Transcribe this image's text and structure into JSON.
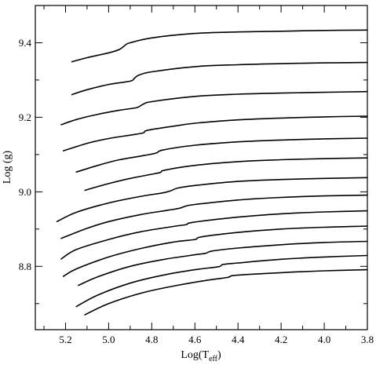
{
  "chart_data": {
    "type": "line",
    "xlabel_base": "Log(T",
    "xlabel_sub": "eff",
    "xlabel_close": ")",
    "ylabel": "Log (g)",
    "xlim": [
      5.34,
      3.8
    ],
    "ylim": [
      8.63,
      9.5
    ],
    "x_reversed": true,
    "x_ticks": [
      5.2,
      5.0,
      4.8,
      4.6,
      4.4,
      4.2,
      4.0,
      3.8
    ],
    "x_tick_labels": [
      "5.2",
      "5.0",
      "4.8",
      "4.6",
      "4.4",
      "4.2",
      "4.0",
      "3.8"
    ],
    "x_minor_ticks": [
      5.3,
      5.1,
      4.9,
      4.7,
      4.5,
      4.3,
      4.1,
      3.9
    ],
    "y_ticks": [
      8.8,
      9.0,
      9.2,
      9.4
    ],
    "y_tick_labels": [
      "8.8",
      "9.0",
      "9.2",
      "9.4"
    ],
    "y_minor_ticks": [
      8.7,
      8.9,
      9.1,
      9.3
    ],
    "grid": false,
    "legend": "none",
    "line_color": "#000000",
    "series": [
      {
        "x": [
          5.17,
          5.1,
          5.0,
          4.95,
          4.92,
          4.9,
          4.8,
          4.6,
          4.4,
          4.2,
          4.0,
          3.8
        ],
        "y": [
          9.349,
          9.36,
          9.373,
          9.382,
          9.395,
          9.4,
          9.413,
          9.425,
          9.429,
          9.431,
          9.433,
          9.434
        ]
      },
      {
        "x": [
          5.17,
          5.1,
          5.0,
          4.9,
          4.88,
          4.86,
          4.8,
          4.6,
          4.4,
          4.2,
          4.0,
          3.8
        ],
        "y": [
          9.261,
          9.274,
          9.288,
          9.297,
          9.305,
          9.313,
          9.322,
          9.336,
          9.341,
          9.344,
          9.346,
          9.347
        ]
      },
      {
        "x": [
          5.22,
          5.15,
          5.05,
          4.95,
          4.87,
          4.84,
          4.8,
          4.6,
          4.4,
          4.2,
          4.0,
          3.8
        ],
        "y": [
          9.18,
          9.194,
          9.208,
          9.219,
          9.226,
          9.235,
          9.242,
          9.256,
          9.262,
          9.265,
          9.267,
          9.269
        ]
      },
      {
        "x": [
          5.21,
          5.1,
          5.0,
          4.9,
          4.84,
          4.82,
          4.7,
          4.6,
          4.4,
          4.2,
          4.0,
          3.8
        ],
        "y": [
          9.11,
          9.13,
          9.143,
          9.152,
          9.158,
          9.165,
          9.176,
          9.184,
          9.193,
          9.198,
          9.201,
          9.203
        ]
      },
      {
        "x": [
          5.15,
          5.05,
          4.95,
          4.85,
          4.78,
          4.75,
          4.6,
          4.4,
          4.2,
          4.0,
          3.8
        ],
        "y": [
          9.053,
          9.071,
          9.086,
          9.096,
          9.104,
          9.112,
          9.125,
          9.134,
          9.139,
          9.142,
          9.144
        ]
      },
      {
        "x": [
          5.11,
          5.0,
          4.9,
          4.8,
          4.76,
          4.74,
          4.6,
          4.4,
          4.2,
          4.0,
          3.8
        ],
        "y": [
          9.004,
          9.022,
          9.036,
          9.047,
          9.052,
          9.058,
          9.071,
          9.081,
          9.086,
          9.089,
          9.091
        ]
      },
      {
        "x": [
          5.24,
          5.15,
          5.0,
          4.85,
          4.75,
          4.71,
          4.68,
          4.6,
          4.4,
          4.2,
          4.0,
          3.8
        ],
        "y": [
          8.92,
          8.945,
          8.97,
          8.988,
          8.997,
          9.003,
          9.01,
          9.017,
          9.028,
          9.033,
          9.036,
          9.038
        ]
      },
      {
        "x": [
          5.22,
          5.1,
          5.0,
          4.85,
          4.72,
          4.67,
          4.64,
          4.6,
          4.4,
          4.2,
          4.0,
          3.8
        ],
        "y": [
          8.875,
          8.902,
          8.92,
          8.939,
          8.951,
          8.956,
          8.962,
          8.966,
          8.978,
          8.985,
          8.989,
          8.991
        ]
      },
      {
        "x": [
          5.22,
          5.15,
          5.0,
          4.85,
          4.7,
          4.64,
          4.61,
          4.4,
          4.2,
          4.0,
          3.8
        ],
        "y": [
          8.82,
          8.845,
          8.872,
          8.893,
          8.907,
          8.912,
          8.918,
          8.932,
          8.941,
          8.946,
          8.949
        ]
      },
      {
        "x": [
          5.21,
          5.15,
          5.0,
          4.85,
          4.7,
          4.6,
          4.57,
          4.4,
          4.2,
          4.0,
          3.8
        ],
        "y": [
          8.773,
          8.793,
          8.825,
          8.848,
          8.865,
          8.872,
          8.879,
          8.891,
          8.9,
          8.905,
          8.908
        ]
      },
      {
        "x": [
          5.14,
          5.05,
          4.9,
          4.75,
          4.6,
          4.55,
          4.52,
          4.4,
          4.2,
          4.0,
          3.8
        ],
        "y": [
          8.749,
          8.772,
          8.8,
          8.818,
          8.831,
          8.835,
          8.841,
          8.849,
          8.858,
          8.864,
          8.867
        ]
      },
      {
        "x": [
          5.15,
          5.05,
          4.9,
          4.75,
          4.6,
          4.49,
          4.47,
          4.4,
          4.2,
          4.0,
          3.8
        ],
        "y": [
          8.692,
          8.723,
          8.755,
          8.776,
          8.791,
          8.799,
          8.805,
          8.809,
          8.819,
          8.825,
          8.829
        ]
      },
      {
        "x": [
          5.11,
          5.0,
          4.85,
          4.7,
          4.55,
          4.45,
          4.41,
          4.2,
          4.0,
          3.8
        ],
        "y": [
          8.67,
          8.7,
          8.728,
          8.747,
          8.762,
          8.77,
          8.776,
          8.783,
          8.788,
          8.791
        ]
      }
    ]
  }
}
